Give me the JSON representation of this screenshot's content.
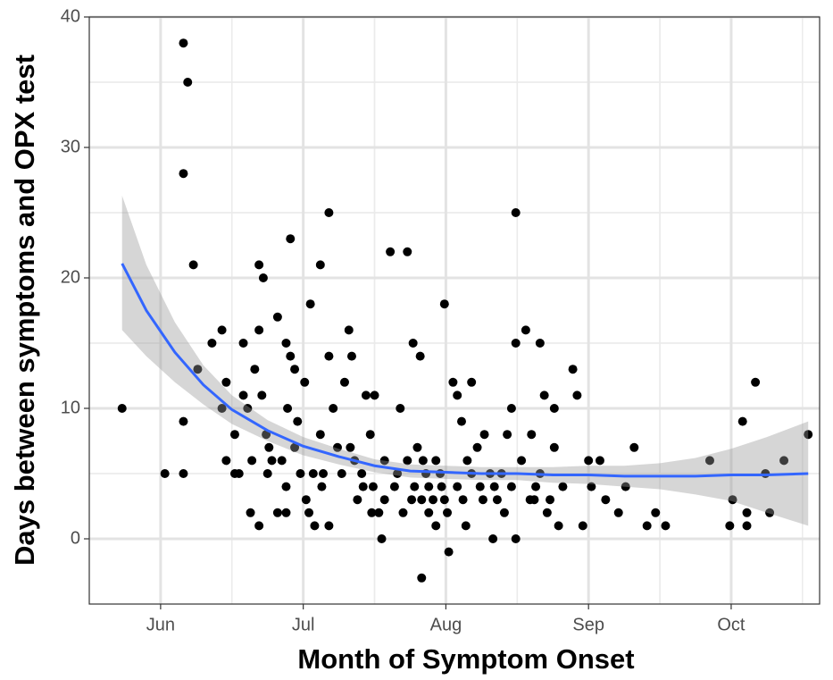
{
  "chart_data": {
    "type": "scatter",
    "xlabel": "Month of Symptom Onset",
    "ylabel": "Days between symptoms and OPX test",
    "xlim": [
      5.5,
      10.62
    ],
    "xticks": [
      {
        "value": 6,
        "label": "Jun"
      },
      {
        "value": 7,
        "label": "Jul"
      },
      {
        "value": 8,
        "label": "Aug"
      },
      {
        "value": 9,
        "label": "Sep"
      },
      {
        "value": 10,
        "label": "Oct"
      }
    ],
    "ylim": [
      -5,
      40
    ],
    "yticks": [
      0,
      10,
      20,
      30,
      40
    ],
    "grid": true,
    "color": "#000000",
    "x": [
      5.73,
      6.03,
      6.16,
      6.19,
      6.16,
      6.23,
      6.16,
      6.16,
      6.26,
      6.36,
      6.43,
      6.46,
      6.43,
      6.46,
      6.52,
      6.55,
      6.58,
      6.58,
      6.61,
      6.63,
      6.64,
      6.66,
      6.69,
      6.72,
      6.69,
      6.69,
      6.71,
      6.74,
      6.75,
      6.78,
      6.82,
      6.82,
      6.88,
      6.88,
      6.91,
      6.91,
      6.94,
      6.89,
      6.96,
      6.94,
      6.98,
      7.01,
      7.02,
      7.05,
      7.04,
      7.08,
      7.12,
      7.12,
      7.14,
      7.18,
      7.18,
      7.18,
      7.21,
      7.29,
      7.32,
      7.34,
      7.27,
      7.33,
      7.38,
      7.41,
      7.44,
      7.47,
      7.5,
      7.49,
      7.53,
      7.55,
      7.57,
      7.61,
      7.66,
      7.68,
      7.73,
      7.77,
      7.82,
      7.8,
      7.83,
      7.83,
      7.86,
      7.88,
      7.93,
      7.96,
      7.99,
      7.99,
      8.02,
      8.05,
      8.08,
      8.11,
      8.18,
      8.15,
      8.22,
      8.24,
      8.27,
      8.33,
      8.36,
      8.39,
      8.43,
      8.46,
      8.49,
      8.49,
      8.49,
      8.53,
      8.56,
      8.6,
      8.62,
      8.66,
      8.66,
      8.69,
      8.73,
      8.76,
      8.76,
      8.79,
      8.82,
      8.89,
      8.92,
      8.96,
      9.0,
      9.02,
      9.08,
      9.12,
      9.21,
      9.26,
      9.32,
      9.41,
      9.47,
      9.54,
      9.85,
      9.99,
      10.01,
      10.08,
      10.11,
      10.11,
      10.17,
      10.24,
      10.27,
      10.37,
      10.54,
      6.52,
      6.76,
      6.85,
      6.88,
      7.07,
      7.13,
      7.24,
      7.36,
      7.42,
      7.48,
      7.57,
      7.64,
      7.7,
      7.73,
      7.76,
      7.78,
      7.84,
      7.88,
      7.91,
      7.93,
      7.97,
      8.01,
      8.08,
      8.12,
      8.14,
      8.18,
      8.26,
      8.31,
      8.34,
      8.41,
      8.46,
      8.59,
      8.63,
      8.71
    ],
    "values": [
      10,
      5,
      38,
      35,
      28,
      21,
      9,
      5,
      13,
      15,
      16,
      12,
      10,
      6,
      8,
      5,
      15,
      11,
      10,
      2,
      6,
      13,
      21,
      20,
      16,
      1,
      11,
      8,
      5,
      6,
      2,
      17,
      2,
      15,
      23,
      14,
      13,
      10,
      9,
      7,
      5,
      12,
      3,
      18,
      2,
      1,
      21,
      8,
      5,
      25,
      14,
      1,
      10,
      12,
      16,
      14,
      5,
      7,
      3,
      5,
      11,
      8,
      11,
      4,
      2,
      0,
      6,
      22,
      5,
      10,
      22,
      15,
      14,
      7,
      -3,
      3,
      5,
      2,
      1,
      5,
      18,
      3,
      -1,
      12,
      11,
      9,
      12,
      6,
      7,
      4,
      8,
      0,
      3,
      5,
      8,
      10,
      25,
      15,
      0,
      6,
      16,
      8,
      3,
      15,
      5,
      11,
      3,
      10,
      7,
      1,
      4,
      13,
      11,
      1,
      6,
      4,
      6,
      3,
      2,
      4,
      7,
      1,
      2,
      1,
      6,
      1,
      3,
      9,
      2,
      1,
      12,
      5,
      2,
      6,
      8,
      5,
      7,
      6,
      4,
      5,
      4,
      7,
      6,
      4,
      2,
      3,
      4,
      2,
      6,
      3,
      4,
      6,
      4,
      3,
      6,
      4,
      2,
      4,
      3,
      1,
      5,
      3,
      5,
      4,
      2,
      4,
      3,
      4,
      2
    ],
    "smooth": {
      "color": "#3366ff",
      "band_color": "#999999",
      "x": [
        5.73,
        5.9,
        6.1,
        6.3,
        6.5,
        6.75,
        7.0,
        7.25,
        7.5,
        7.75,
        8.0,
        8.25,
        8.5,
        8.75,
        9.0,
        9.25,
        9.5,
        9.75,
        10.0,
        10.25,
        10.54
      ],
      "values": [
        21.1,
        17.5,
        14.3,
        11.8,
        9.9,
        8.3,
        7.1,
        6.3,
        5.6,
        5.2,
        5.1,
        5.0,
        5.0,
        4.9,
        4.9,
        4.8,
        4.8,
        4.8,
        4.9,
        4.9,
        5.0
      ],
      "lower": [
        16,
        14,
        12,
        10.3,
        8.8,
        7.5,
        6.4,
        5.7,
        5.1,
        4.7,
        4.6,
        4.5,
        4.5,
        4.3,
        4.2,
        4.0,
        3.8,
        3.4,
        2.9,
        2.0,
        1.0
      ],
      "upper": [
        26.3,
        21,
        16.6,
        13.3,
        11,
        9.1,
        7.8,
        6.9,
        6.1,
        5.7,
        5.6,
        5.5,
        5.5,
        5.5,
        5.6,
        5.6,
        5.8,
        6.2,
        6.9,
        7.8,
        9.0
      ]
    }
  }
}
